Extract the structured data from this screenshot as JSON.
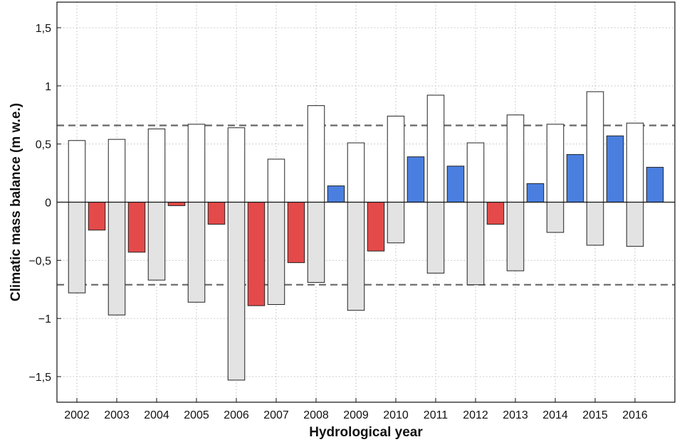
{
  "chart_data": {
    "type": "bar",
    "title": "",
    "xlabel": "Hydrological year",
    "ylabel": "Climatic mass balance (m w.e.)",
    "ylim": [
      -1.72,
      1.72
    ],
    "yticks": [
      -1.5,
      -1,
      -0.5,
      0,
      0.5,
      1,
      1.5
    ],
    "ytick_labels": [
      "−1,5",
      "−1",
      "−0,5",
      "0",
      "0,5",
      "1",
      "1,5"
    ],
    "grid": true,
    "categories": [
      "2002",
      "2003",
      "2004",
      "2005",
      "2006",
      "2007",
      "2008",
      "2009",
      "2010",
      "2011",
      "2012",
      "2013",
      "2014",
      "2015",
      "2016"
    ],
    "series": [
      {
        "role": "winter",
        "values": [
          0.53,
          0.54,
          0.63,
          0.67,
          0.64,
          0.37,
          0.83,
          0.51,
          0.74,
          0.92,
          0.51,
          0.75,
          0.67,
          0.95,
          0.68
        ],
        "fill": "#ffffff",
        "stroke": "#222222"
      },
      {
        "role": "summer",
        "values": [
          -0.78,
          -0.97,
          -0.67,
          -0.86,
          -1.53,
          -0.88,
          -0.69,
          -0.93,
          -0.35,
          -0.61,
          -0.71,
          -0.59,
          -0.26,
          -0.37,
          -0.38
        ],
        "fill": "#e3e3e3",
        "stroke": "#222222"
      },
      {
        "role": "annual",
        "values": [
          -0.24,
          -0.43,
          -0.03,
          -0.19,
          -0.89,
          -0.52,
          0.14,
          -0.42,
          0.39,
          0.31,
          -0.19,
          0.16,
          0.41,
          0.57,
          0.3
        ],
        "positive_color": "#4a7fe0",
        "negative_color": "#e44a4a",
        "stroke": "#222222"
      }
    ],
    "reference_lines": [
      0.66,
      -0.71
    ],
    "reference_line_color": "#666666"
  }
}
